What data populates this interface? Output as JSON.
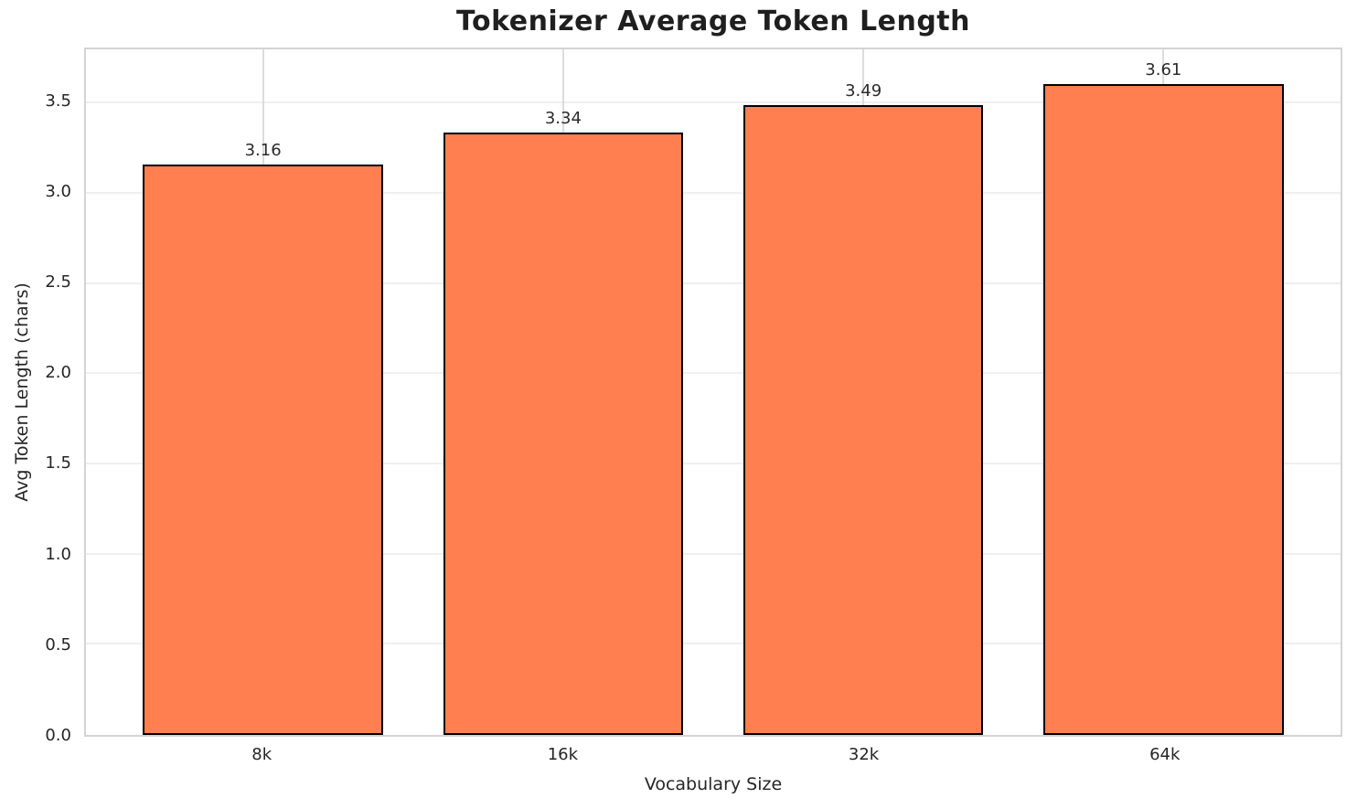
{
  "chart_data": {
    "type": "bar",
    "title": "Tokenizer Average Token Length",
    "xlabel": "Vocabulary Size",
    "ylabel": "Avg Token Length (chars)",
    "categories": [
      "8k",
      "16k",
      "32k",
      "64k"
    ],
    "values": [
      3.16,
      3.34,
      3.49,
      3.61
    ],
    "value_labels": [
      "3.16",
      "3.34",
      "3.49",
      "3.61"
    ],
    "ytick_labels": [
      "0.0",
      "0.5",
      "1.0",
      "1.5",
      "2.0",
      "2.5",
      "3.0",
      "3.5"
    ],
    "yticks": [
      0.0,
      0.5,
      1.0,
      1.5,
      2.0,
      2.5,
      3.0,
      3.5
    ],
    "ylim": [
      0,
      3.8
    ],
    "bar_width_fraction": 0.8,
    "x_margin_fraction": 0.05,
    "grid": true,
    "legend_position": "none",
    "colors": {
      "bar_fill": "#FF7F50",
      "bar_edge": "#000000",
      "horizontal_grid": "#efefef",
      "vertical_grid": "#dcdcdc",
      "spine": "#d4d4d4",
      "title_text": "#1f1f1f",
      "tick_text": "#262626"
    }
  }
}
